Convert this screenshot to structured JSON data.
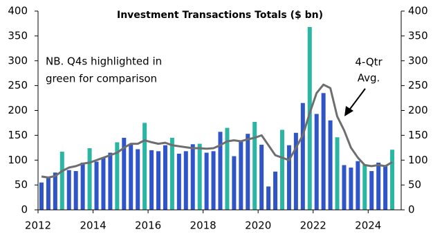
{
  "chart_data": {
    "type": "bar",
    "title": "Investment Transactions Totals ($ bn)",
    "annotations": [
      {
        "lines": [
          "NB. Q4s highlighted in",
          "green for comparison"
        ]
      },
      {
        "lines": [
          "4-Qtr",
          "Avg."
        ]
      }
    ],
    "x": [
      2012.125,
      2012.375,
      2012.625,
      2012.875,
      2013.125,
      2013.375,
      2013.625,
      2013.875,
      2014.125,
      2014.375,
      2014.625,
      2014.875,
      2015.125,
      2015.375,
      2015.625,
      2015.875,
      2016.125,
      2016.375,
      2016.625,
      2016.875,
      2017.125,
      2017.375,
      2017.625,
      2017.875,
      2018.125,
      2018.375,
      2018.625,
      2018.875,
      2019.125,
      2019.375,
      2019.625,
      2019.875,
      2020.125,
      2020.375,
      2020.625,
      2020.875,
      2021.125,
      2021.375,
      2021.625,
      2021.875,
      2022.125,
      2022.375,
      2022.625,
      2022.875,
      2023.125,
      2023.375,
      2023.625,
      2023.875,
      2024.125,
      2024.375,
      2024.625,
      2024.875
    ],
    "values": [
      55,
      65,
      75,
      117,
      80,
      78,
      95,
      124,
      97,
      105,
      115,
      136,
      145,
      133,
      122,
      175,
      120,
      118,
      130,
      145,
      113,
      118,
      132,
      133,
      115,
      118,
      157,
      165,
      108,
      137,
      153,
      177,
      131,
      47,
      77,
      161,
      130,
      155,
      215,
      368,
      193,
      235,
      180,
      146,
      90,
      85,
      98,
      92,
      78,
      95,
      90,
      121
    ],
    "colors": [
      "#2f55c8",
      "#2f55c8",
      "#2f55c8",
      "#2bb5a3",
      "#2f55c8",
      "#2f55c8",
      "#2f55c8",
      "#2bb5a3",
      "#2f55c8",
      "#2f55c8",
      "#2f55c8",
      "#2bb5a3",
      "#2f55c8",
      "#2f55c8",
      "#2f55c8",
      "#2bb5a3",
      "#2f55c8",
      "#2f55c8",
      "#2f55c8",
      "#2bb5a3",
      "#2f55c8",
      "#2f55c8",
      "#2f55c8",
      "#2bb5a3",
      "#2f55c8",
      "#2f55c8",
      "#2f55c8",
      "#2bb5a3",
      "#2f55c8",
      "#2f55c8",
      "#2f55c8",
      "#2bb5a3",
      "#2f55c8",
      "#2f55c8",
      "#2f55c8",
      "#2bb5a3",
      "#2f55c8",
      "#2f55c8",
      "#2f55c8",
      "#2bb5a3",
      "#2f55c8",
      "#2f55c8",
      "#2f55c8",
      "#2bb5a3",
      "#2f55c8",
      "#2f55c8",
      "#2f55c8",
      "#2bb5a3",
      "#2f55c8",
      "#2f55c8",
      "#2f55c8",
      "#2bb5a3"
    ],
    "line": {
      "color": "#6e6e6e",
      "values": [
        67,
        65,
        68,
        78,
        85,
        88,
        93,
        95,
        100,
        105,
        110,
        115,
        125,
        133,
        133,
        140,
        136,
        133,
        135,
        130,
        128,
        126,
        124,
        124,
        123,
        124,
        130,
        138,
        140,
        138,
        142,
        145,
        150,
        130,
        110,
        105,
        100,
        125,
        150,
        195,
        235,
        252,
        245,
        188,
        160,
        125,
        105,
        90,
        88,
        90,
        88,
        96
      ]
    },
    "xlim": [
      2012,
      2025.2
    ],
    "xticks": [
      2012,
      2014,
      2016,
      2018,
      2020,
      2022,
      2024
    ],
    "ylim": [
      0,
      400
    ],
    "yticks": [
      0,
      50,
      100,
      150,
      200,
      250,
      300,
      350,
      400
    ],
    "y2lim": [
      0,
      400
    ],
    "y2ticks": [
      0,
      50,
      100,
      150,
      200,
      250,
      300,
      350,
      400
    ]
  }
}
